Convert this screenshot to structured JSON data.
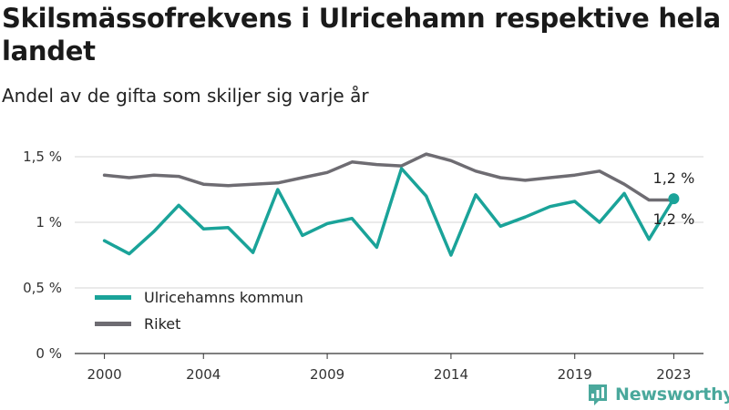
{
  "title": "Skilsmässofrekvens i Ulricehamn respektive hela landet",
  "subtitle": "Andel av de gifta som skiljer sig varje år",
  "brand": {
    "name": "Newsworthy",
    "color": "#4aa89c",
    "icon": "bar-chart-icon"
  },
  "chart_data": {
    "type": "line",
    "title": "Skilsmässofrekvens i Ulricehamn respektive hela landet",
    "subtitle": "Andel av de gifta som skiljer sig varje år",
    "x": [
      2000,
      2001,
      2002,
      2003,
      2004,
      2005,
      2006,
      2007,
      2008,
      2009,
      2010,
      2011,
      2012,
      2013,
      2014,
      2015,
      2016,
      2017,
      2018,
      2019,
      2020,
      2021,
      2022,
      2023
    ],
    "x_ticks": [
      2000,
      2004,
      2009,
      2014,
      2019,
      2023
    ],
    "x_tick_labels": [
      "2000",
      "2004",
      "2009",
      "2014",
      "2019",
      "2023"
    ],
    "xlim": [
      1998.8,
      2024.2
    ],
    "ylim": [
      0,
      1.5
    ],
    "y_ticks": [
      0,
      0.5,
      1,
      1.5
    ],
    "y_tick_labels": [
      "0 %",
      "0,5 %",
      "1 %",
      "1,5 %"
    ],
    "grid": true,
    "legend_position": "bottom-left",
    "series": [
      {
        "name": "Ulricehamns kommun",
        "color": "#1aa399",
        "values": [
          0.86,
          0.76,
          0.93,
          1.13,
          0.95,
          0.96,
          0.77,
          1.25,
          0.9,
          0.99,
          1.03,
          0.81,
          1.41,
          1.2,
          0.75,
          1.21,
          0.97,
          1.04,
          1.12,
          1.16,
          1.0,
          1.22,
          0.87,
          1.18
        ],
        "end_label": "1,2 %"
      },
      {
        "name": "Riket",
        "color": "#6e6c72",
        "values": [
          1.36,
          1.34,
          1.36,
          1.35,
          1.29,
          1.28,
          1.29,
          1.3,
          1.34,
          1.38,
          1.46,
          1.44,
          1.43,
          1.52,
          1.47,
          1.39,
          1.34,
          1.32,
          1.34,
          1.36,
          1.39,
          1.29,
          1.17,
          1.17
        ],
        "end_label": "1,2 %"
      }
    ]
  }
}
